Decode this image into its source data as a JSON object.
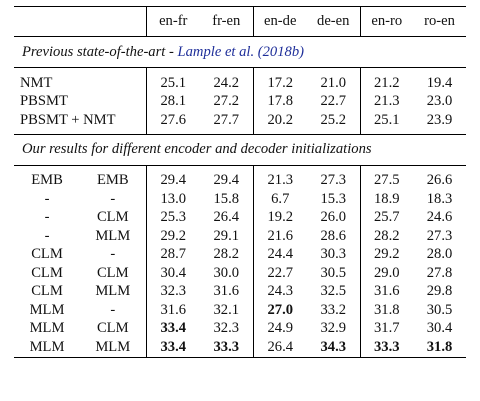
{
  "header": [
    "en-fr",
    "fr-en",
    "en-de",
    "de-en",
    "en-ro",
    "ro-en"
  ],
  "section1": {
    "title_prefix": "Previous state-of-the-art",
    "title_sep": " - ",
    "citation": "Lample et al. (2018b)",
    "rows": [
      {
        "label": "NMT",
        "values": [
          "25.1",
          "24.2",
          "17.2",
          "21.0",
          "21.2",
          "19.4"
        ]
      },
      {
        "label": "PBSMT",
        "values": [
          "28.1",
          "27.2",
          "17.8",
          "22.7",
          "21.3",
          "23.0"
        ]
      },
      {
        "label": "PBSMT + NMT",
        "values": [
          "27.6",
          "27.7",
          "20.2",
          "25.2",
          "25.1",
          "23.9"
        ]
      }
    ]
  },
  "section2": {
    "title": "Our results for different encoder and decoder initializations",
    "rows": [
      {
        "enc": "EMB",
        "dec": "EMB",
        "values": [
          "29.4",
          "29.4",
          "21.3",
          "27.3",
          "27.5",
          "26.6"
        ],
        "bold": []
      },
      {
        "enc": "-",
        "dec": "-",
        "values": [
          "13.0",
          "15.8",
          "6.7",
          "15.3",
          "18.9",
          "18.3"
        ],
        "bold": []
      },
      {
        "enc": "-",
        "dec": "CLM",
        "values": [
          "25.3",
          "26.4",
          "19.2",
          "26.0",
          "25.7",
          "24.6"
        ],
        "bold": []
      },
      {
        "enc": "-",
        "dec": "MLM",
        "values": [
          "29.2",
          "29.1",
          "21.6",
          "28.6",
          "28.2",
          "27.3"
        ],
        "bold": []
      },
      {
        "enc": "CLM",
        "dec": "-",
        "values": [
          "28.7",
          "28.2",
          "24.4",
          "30.3",
          "29.2",
          "28.0"
        ],
        "bold": []
      },
      {
        "enc": "CLM",
        "dec": "CLM",
        "values": [
          "30.4",
          "30.0",
          "22.7",
          "30.5",
          "29.0",
          "27.8"
        ],
        "bold": []
      },
      {
        "enc": "CLM",
        "dec": "MLM",
        "values": [
          "32.3",
          "31.6",
          "24.3",
          "32.5",
          "31.6",
          "29.8"
        ],
        "bold": []
      },
      {
        "enc": "MLM",
        "dec": "-",
        "values": [
          "31.6",
          "32.1",
          "27.0",
          "33.2",
          "31.8",
          "30.5"
        ],
        "bold": [
          2
        ]
      },
      {
        "enc": "MLM",
        "dec": "CLM",
        "values": [
          "33.4",
          "32.3",
          "24.9",
          "32.9",
          "31.7",
          "30.4"
        ],
        "bold": [
          0
        ]
      },
      {
        "enc": "MLM",
        "dec": "MLM",
        "values": [
          "33.4",
          "33.3",
          "26.4",
          "34.3",
          "33.3",
          "31.8"
        ],
        "bold": [
          0,
          1,
          3,
          4,
          5
        ]
      }
    ]
  }
}
